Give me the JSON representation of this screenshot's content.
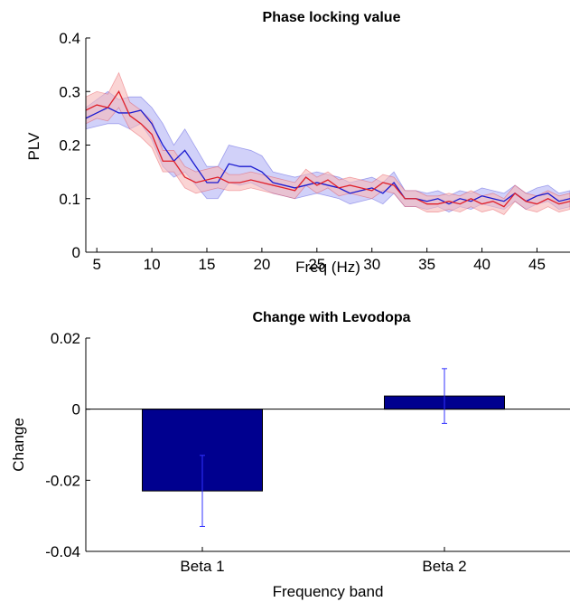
{
  "chart_data": [
    {
      "type": "line",
      "title": "Phase locking value",
      "xlabel": "Freq (Hz)",
      "ylabel": "PLV",
      "xlim": [
        4,
        48
      ],
      "ylim": [
        0,
        0.4
      ],
      "xticks": [
        5,
        10,
        15,
        20,
        25,
        30,
        35,
        40,
        45
      ],
      "yticks": [
        0,
        0.1,
        0.2,
        0.3,
        0.4
      ],
      "grid": false,
      "legend": "none",
      "colors": {
        "blue_line": "#1a1ad0",
        "blue_band": "#b3b3f5",
        "red_line": "#e0202a",
        "red_band": "#f7b8b8"
      },
      "x": [
        4,
        5,
        6,
        7,
        8,
        9,
        10,
        11,
        12,
        13,
        14,
        15,
        16,
        17,
        18,
        19,
        20,
        21,
        22,
        23,
        24,
        25,
        26,
        27,
        28,
        29,
        30,
        31,
        32,
        33,
        34,
        35,
        36,
        37,
        38,
        39,
        40,
        41,
        42,
        43,
        44,
        45,
        46,
        47,
        48
      ],
      "series": [
        {
          "color": "blue",
          "values": [
            0.25,
            0.26,
            0.27,
            0.26,
            0.26,
            0.265,
            0.24,
            0.2,
            0.17,
            0.19,
            0.16,
            0.13,
            0.13,
            0.165,
            0.16,
            0.16,
            0.15,
            0.13,
            0.125,
            0.12,
            0.125,
            0.13,
            0.125,
            0.12,
            0.11,
            0.115,
            0.12,
            0.11,
            0.13,
            0.1,
            0.1,
            0.095,
            0.1,
            0.09,
            0.1,
            0.095,
            0.105,
            0.1,
            0.095,
            0.11,
            0.095,
            0.105,
            0.11,
            0.095,
            0.1
          ],
          "lower": [
            0.23,
            0.235,
            0.24,
            0.24,
            0.23,
            0.24,
            0.21,
            0.16,
            0.14,
            0.15,
            0.125,
            0.1,
            0.1,
            0.13,
            0.125,
            0.13,
            0.12,
            0.11,
            0.105,
            0.1,
            0.105,
            0.11,
            0.105,
            0.1,
            0.09,
            0.095,
            0.1,
            0.09,
            0.11,
            0.085,
            0.085,
            0.08,
            0.085,
            0.075,
            0.085,
            0.08,
            0.09,
            0.085,
            0.08,
            0.095,
            0.08,
            0.09,
            0.095,
            0.08,
            0.085
          ],
          "upper": [
            0.27,
            0.285,
            0.3,
            0.285,
            0.29,
            0.29,
            0.27,
            0.24,
            0.2,
            0.23,
            0.195,
            0.16,
            0.16,
            0.2,
            0.195,
            0.19,
            0.18,
            0.15,
            0.145,
            0.14,
            0.145,
            0.15,
            0.145,
            0.14,
            0.13,
            0.135,
            0.14,
            0.13,
            0.15,
            0.115,
            0.115,
            0.11,
            0.115,
            0.105,
            0.115,
            0.11,
            0.12,
            0.115,
            0.11,
            0.125,
            0.11,
            0.12,
            0.125,
            0.11,
            0.115
          ]
        },
        {
          "color": "red",
          "values": [
            0.265,
            0.275,
            0.27,
            0.3,
            0.255,
            0.24,
            0.22,
            0.17,
            0.17,
            0.14,
            0.13,
            0.135,
            0.14,
            0.13,
            0.13,
            0.135,
            0.13,
            0.125,
            0.12,
            0.115,
            0.14,
            0.125,
            0.135,
            0.12,
            0.125,
            0.12,
            0.115,
            0.13,
            0.125,
            0.1,
            0.1,
            0.09,
            0.09,
            0.095,
            0.09,
            0.1,
            0.09,
            0.095,
            0.085,
            0.11,
            0.095,
            0.09,
            0.1,
            0.09,
            0.095
          ],
          "lower": [
            0.24,
            0.25,
            0.245,
            0.27,
            0.23,
            0.215,
            0.195,
            0.15,
            0.15,
            0.12,
            0.11,
            0.115,
            0.12,
            0.115,
            0.115,
            0.12,
            0.115,
            0.11,
            0.105,
            0.1,
            0.125,
            0.11,
            0.12,
            0.105,
            0.11,
            0.105,
            0.1,
            0.115,
            0.11,
            0.085,
            0.085,
            0.075,
            0.075,
            0.08,
            0.075,
            0.085,
            0.075,
            0.08,
            0.07,
            0.095,
            0.08,
            0.075,
            0.085,
            0.075,
            0.08
          ],
          "upper": [
            0.29,
            0.3,
            0.295,
            0.335,
            0.28,
            0.265,
            0.245,
            0.19,
            0.19,
            0.16,
            0.15,
            0.155,
            0.16,
            0.145,
            0.145,
            0.15,
            0.145,
            0.14,
            0.135,
            0.13,
            0.155,
            0.14,
            0.15,
            0.135,
            0.14,
            0.135,
            0.13,
            0.145,
            0.14,
            0.115,
            0.115,
            0.105,
            0.105,
            0.11,
            0.105,
            0.115,
            0.105,
            0.11,
            0.1,
            0.125,
            0.11,
            0.105,
            0.115,
            0.105,
            0.11
          ]
        }
      ]
    },
    {
      "type": "bar",
      "title": "Change with Levodopa",
      "xlabel": "Frequency band",
      "ylabel": "Change",
      "categories": [
        "Beta 1",
        "Beta 2"
      ],
      "values": [
        -0.023,
        0.0037
      ],
      "errors": [
        0.01,
        0.0077
      ],
      "ylim": [
        -0.04,
        0.02
      ],
      "yticks": [
        -0.04,
        -0.02,
        0,
        0.02
      ],
      "grid": false,
      "legend": "none",
      "colors": {
        "bar": "#00008f",
        "edge": "#000000",
        "errorbar": "#3030ff",
        "zero_line": "#000000"
      }
    }
  ]
}
